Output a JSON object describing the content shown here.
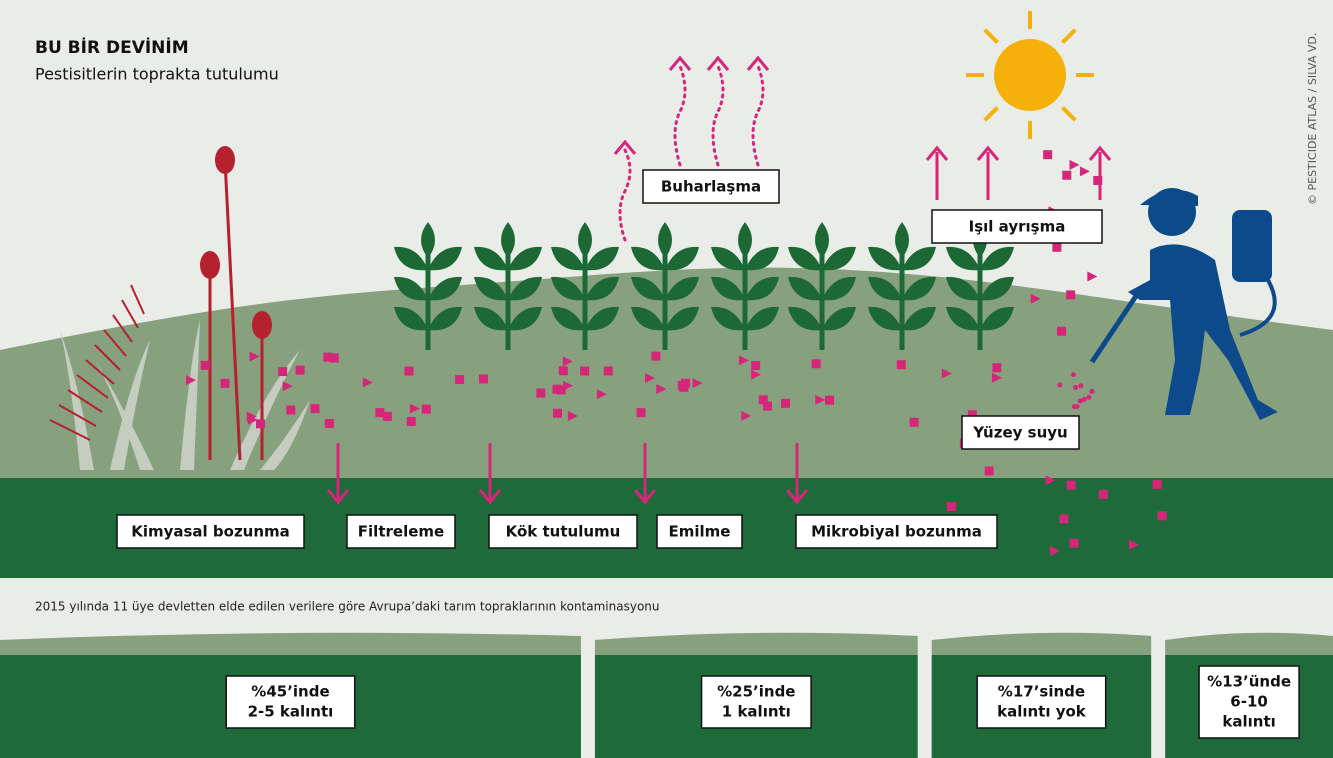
{
  "header": {
    "title": "BU BİR DEVİNİM",
    "subtitle": "Pestisitlerin toprakta tutulumu",
    "credit": "© PESTICIDE ATLAS / SILVA VD."
  },
  "processes": [
    {
      "label": "Buharlaşma"
    },
    {
      "label": "Işıl ayrışma"
    },
    {
      "label": "Yüzey suyu"
    },
    {
      "label": "Kimyasal bozunma"
    },
    {
      "label": "Filtreleme"
    },
    {
      "label": "Kök tutulumu"
    },
    {
      "label": "Emilme"
    },
    {
      "label": "Mikrobiyal bozunma"
    }
  ],
  "note": "2015 yılında 11 üye devletten elde edilen verilere göre Avrupa’daki tarım topraklarının kontaminasyonu",
  "segments": [
    {
      "value": 45,
      "label": [
        "%45’inde",
        "2-5 kalıntı"
      ]
    },
    {
      "value": 25,
      "label": [
        "%25’inde",
        "1 kalıntı"
      ]
    },
    {
      "value": 17,
      "label": [
        "%17’sinde",
        "kalıntı yok"
      ]
    },
    {
      "value": 13,
      "label": [
        "%13’ünde",
        "6-10",
        "kalıntı"
      ]
    }
  ]
}
